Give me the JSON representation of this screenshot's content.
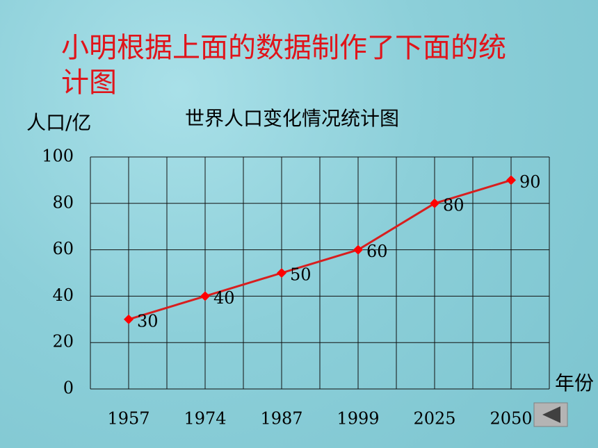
{
  "heading": "小明根据上面的数据制作了下面的统计图",
  "chart_data": {
    "type": "line",
    "title": "世界人口变化情况统计图",
    "y_label": "人口/亿",
    "x_label": "年份",
    "categories": [
      "1957",
      "1974",
      "1987",
      "1999",
      "2025",
      "2050"
    ],
    "values": [
      30,
      40,
      50,
      60,
      80,
      90
    ],
    "color": "#d81e1e",
    "ylim": [
      0,
      100
    ],
    "yticks": [
      0,
      20,
      40,
      60,
      80,
      100
    ],
    "grid": true
  }
}
